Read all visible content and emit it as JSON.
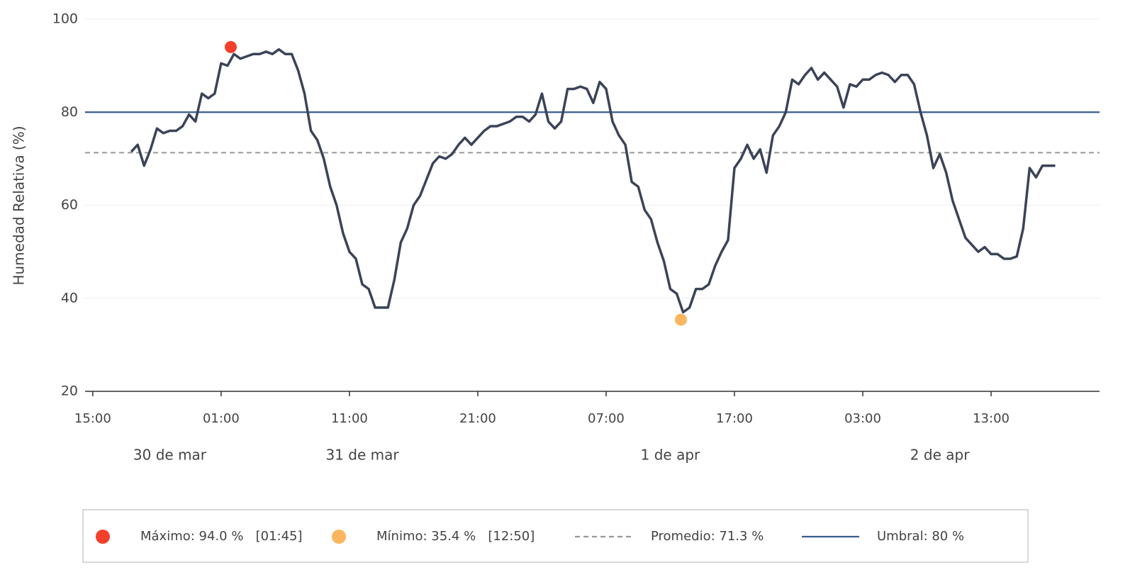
{
  "chart_data": {
    "type": "line",
    "ylabel": "Humedad Relativa (%)",
    "xlim": [
      -0.6,
      78.45
    ],
    "ylim": [
      20,
      100
    ],
    "yticks": [
      20,
      40,
      60,
      80,
      100
    ],
    "grid": true,
    "xticks": [
      {
        "value": 0,
        "label": "15:00"
      },
      {
        "value": 10,
        "label": "01:00"
      },
      {
        "value": 20,
        "label": "11:00"
      },
      {
        "value": 30,
        "label": "21:00"
      },
      {
        "value": 40,
        "label": "07:00"
      },
      {
        "value": 50,
        "label": "17:00"
      },
      {
        "value": 60,
        "label": "03:00"
      },
      {
        "value": 70,
        "label": "13:00"
      }
    ],
    "date_labels": [
      {
        "value": 6,
        "label": "30 de mar"
      },
      {
        "value": 21,
        "label": "31 de mar"
      },
      {
        "value": 45,
        "label": "1 de apr"
      },
      {
        "value": 66,
        "label": "2 de apr"
      }
    ],
    "series": [
      {
        "color": "#3b4358",
        "x": [
          3,
          3.5,
          4,
          4.5,
          5,
          5.5,
          6,
          6.5,
          7,
          7.5,
          8,
          8.5,
          9,
          9.5,
          10,
          10.5,
          11,
          11.5,
          12,
          12.5,
          13,
          13.5,
          14,
          14.5,
          15,
          15.5,
          16,
          16.5,
          17,
          17.5,
          18,
          18.5,
          19,
          19.5,
          20,
          20.5,
          21,
          21.5,
          22,
          22.5,
          23,
          23.5,
          24,
          24.5,
          25,
          25.5,
          26,
          26.5,
          27,
          27.5,
          28,
          28.5,
          29,
          29.5,
          30,
          30.5,
          31,
          31.5,
          32,
          32.5,
          33,
          33.5,
          34,
          34.5,
          35,
          35.5,
          36,
          36.5,
          37,
          37.5,
          38,
          38.5,
          39,
          39.5,
          40,
          40.5,
          41,
          41.5,
          42,
          42.5,
          43,
          43.5,
          44,
          44.5,
          45,
          45.5,
          46,
          46.5,
          47,
          47.5,
          48,
          48.5,
          49,
          49.5,
          50,
          50.5,
          51,
          51.5,
          52,
          52.5,
          53,
          53.5,
          54,
          54.5,
          55,
          55.5,
          56,
          56.5,
          57,
          57.5,
          58,
          58.5,
          59,
          59.5,
          60,
          60.5,
          61,
          61.5,
          62,
          62.5,
          63,
          63.5,
          64,
          64.5,
          65,
          65.5,
          66,
          66.5,
          67,
          67.5,
          68,
          68.5,
          69,
          69.5,
          70,
          70.5,
          71,
          71.5,
          72,
          72.5,
          73,
          73.5,
          74,
          74.5,
          75
        ],
        "values": [
          71.5,
          73,
          68.5,
          72,
          76.5,
          75.5,
          76,
          76,
          77,
          79.5,
          78,
          84,
          83,
          84,
          90.5,
          90,
          92.5,
          91.5,
          92,
          92.5,
          92.5,
          93,
          92.5,
          93.5,
          92.5,
          92.5,
          89,
          84,
          76,
          74,
          70,
          64,
          60,
          54,
          50,
          48.5,
          43,
          42,
          38,
          38,
          38,
          44,
          52,
          55,
          60,
          62,
          65.5,
          69,
          70.5,
          70,
          71,
          73,
          74.5,
          73,
          74.5,
          76,
          77,
          77,
          77.5,
          78,
          79,
          79,
          78,
          79.5,
          84,
          78,
          76.5,
          78,
          85,
          85,
          85.5,
          85,
          82,
          86.5,
          85,
          78,
          75,
          73,
          65,
          64,
          59,
          57,
          52,
          48,
          42,
          41,
          37,
          38,
          42,
          42,
          43,
          47,
          50,
          52.5,
          68,
          70,
          73,
          70,
          72,
          67,
          75,
          77,
          80,
          87,
          86,
          88,
          89.5,
          87,
          88.5,
          87,
          85.5,
          81,
          86,
          85.5,
          87,
          87,
          88,
          88.5,
          88,
          86.5,
          88,
          88,
          86,
          80,
          75,
          68,
          71,
          67,
          61,
          57,
          53,
          51.5,
          50,
          51,
          49.5,
          49.5,
          48.5,
          48.5,
          49,
          55,
          68,
          66,
          68.5,
          68.5,
          68.5
        ]
      }
    ],
    "markers": [
      {
        "x": 10.75,
        "value": 94.0,
        "color": "#f4402a",
        "label": "Máximo: 94.0 %   [01:45]"
      },
      {
        "x": 45.83,
        "value": 35.4,
        "color": "#fbb65e",
        "label": "Mínimo: 35.4 %   [12:50]"
      }
    ],
    "hlines": [
      {
        "value": 71.3,
        "color": "#999999",
        "dashed": true,
        "label": "Promedio: 71.3 %"
      },
      {
        "value": 80,
        "color": "#3a5d8f",
        "dashed": false,
        "label": "Umbral: 80 %"
      }
    ]
  }
}
